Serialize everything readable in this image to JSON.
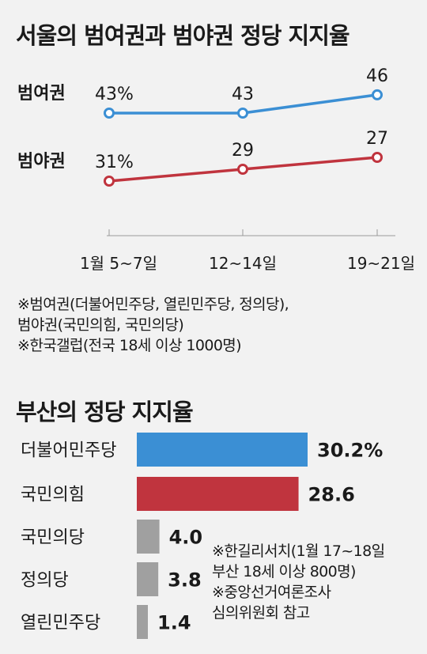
{
  "title1": "서울의 범여권과 범야권 정당 지지율",
  "title2": "부산의 정당 지지율",
  "line_chart": {
    "type": "line",
    "x": [
      "1월 5~7일",
      "12~14일",
      "19~21일"
    ],
    "series": [
      {
        "name": "범여권",
        "values": [
          43,
          43,
          46
        ],
        "labels": [
          "43%",
          "43",
          "46"
        ],
        "color": "#3b8fd4"
      },
      {
        "name": "범야권",
        "values": [
          31,
          29,
          27
        ],
        "labels": [
          "31%",
          "29",
          "27"
        ],
        "color": "#c0343e"
      }
    ],
    "colors": {
      "axis": "#9a9a9a"
    }
  },
  "notes1": [
    "※범여권(더불어민주당, 열린민주당, 정의당),",
    "범야권(국민의힘, 국민의당)",
    "※한국갤럽(전국 18세 이상 1000명)"
  ],
  "bar_chart": {
    "type": "bar",
    "categories": [
      "더불어민주당",
      "국민의힘",
      "국민의당",
      "정의당",
      "열린민주당"
    ],
    "values": [
      30.2,
      28.6,
      4.0,
      3.8,
      1.4
    ],
    "labels": [
      "30.2%",
      "28.6",
      "4.0",
      "3.8",
      "1.4"
    ],
    "colors": [
      "#3b8fd4",
      "#c0343e",
      "#a0a0a0",
      "#a0a0a0",
      "#a0a0a0"
    ]
  },
  "notes2": [
    "※한길리서치(1월 17~18일",
    "부산 18세 이상 800명)",
    "※중앙선거여론조사",
    "심의위원회 참고"
  ]
}
